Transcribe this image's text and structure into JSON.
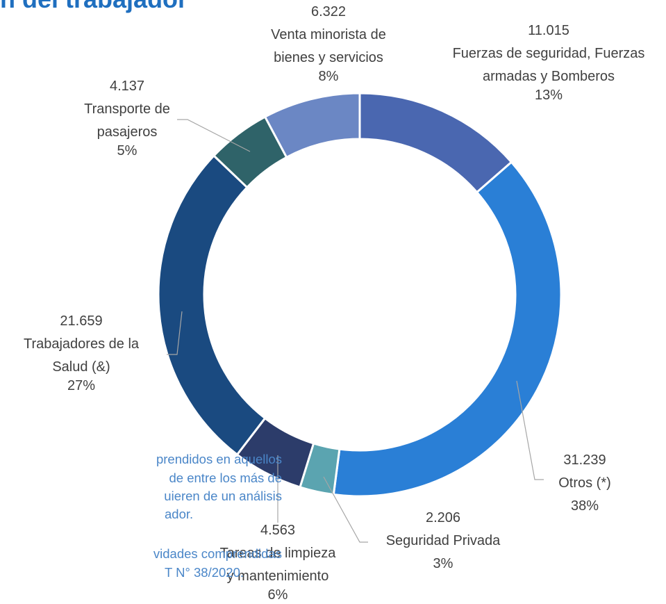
{
  "chart_data": {
    "type": "donut",
    "title": "n del trabajador",
    "categories": [
      "Fuerzas de seguridad, Fuerzas armadas y Bomberos",
      "Otros (*)",
      "Seguridad Privada",
      "Tareas de limpieza y mantenimiento",
      "Trabajadores de la Salud (&)",
      "Transporte de pasajeros",
      "Venta minorista de bienes y servicios"
    ],
    "values": [
      11015,
      31239,
      2206,
      4563,
      21659,
      4137,
      6322
    ],
    "value_labels": [
      "11.015",
      "31.239",
      "2.206",
      "4.563",
      "21.659",
      "4.137",
      "6.322"
    ],
    "percent_labels": [
      "13%",
      "38%",
      "3%",
      "6%",
      "27%",
      "5%",
      "8%"
    ],
    "colors": [
      "#4a67b0",
      "#2a7fd6",
      "#5ba4b0",
      "#2c3c6a",
      "#1a4a80",
      "#2f6369",
      "#6b87c4"
    ],
    "notes": [
      "prendidos en aquellos",
      "de entre los más de",
      "uieren de un análisis",
      "ador.",
      "vidades comprendidas",
      "T N° 38/2020."
    ]
  }
}
